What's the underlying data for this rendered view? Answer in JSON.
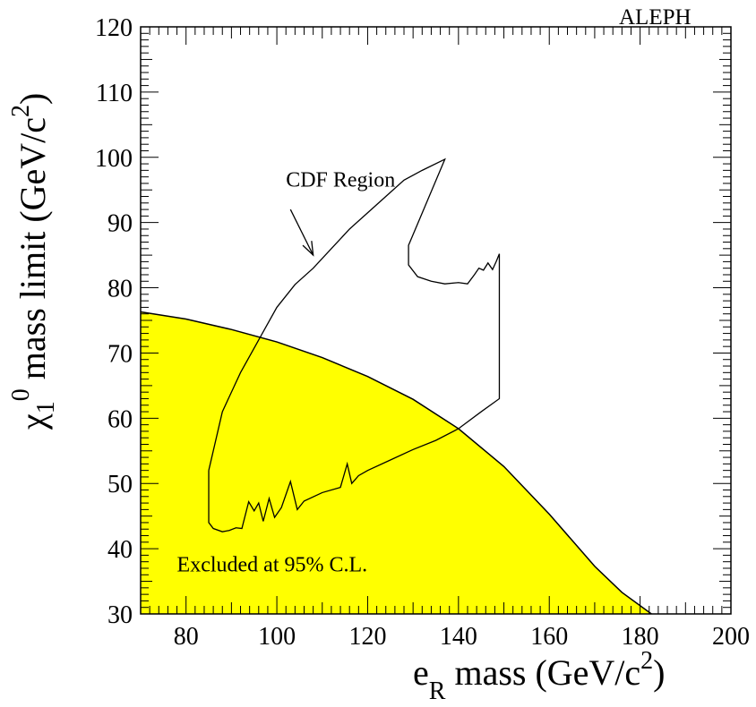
{
  "chart_data": {
    "type": "area",
    "experiment_label": "ALEPH",
    "xlabel": {
      "main": "e",
      "sub": "R",
      "rest": " mass  (GeV/c",
      "sup": "2",
      "end": ")"
    },
    "ylabel": {
      "main": "χ",
      "sub": "1",
      "sup": "0",
      "rest": " mass limit (GeV/c",
      "sup2": "2",
      "end": ")"
    },
    "xlim": [
      70,
      200
    ],
    "ylim": [
      30,
      120
    ],
    "x_ticks": [
      80,
      100,
      120,
      140,
      160,
      180,
      200
    ],
    "y_ticks": [
      30,
      40,
      50,
      60,
      70,
      80,
      90,
      100,
      110,
      120
    ],
    "grid": false,
    "colors": {
      "excluded_fill": "#ffff00",
      "line": "#000000"
    },
    "series": [
      {
        "name": "Excluded at 95% C.L.",
        "kind": "filled-area",
        "points": [
          [
            70,
            76.3
          ],
          [
            80,
            75.2
          ],
          [
            90,
            73.6
          ],
          [
            100,
            71.7
          ],
          [
            110,
            69.3
          ],
          [
            120,
            66.4
          ],
          [
            130,
            62.9
          ],
          [
            140,
            58.4
          ],
          [
            150,
            52.6
          ],
          [
            160,
            45.3
          ],
          [
            170,
            37.3
          ],
          [
            176,
            33.3
          ],
          [
            182.5,
            30
          ]
        ]
      },
      {
        "name": "CDF Region",
        "kind": "contour",
        "points": [
          [
            85,
            52
          ],
          [
            88,
            61
          ],
          [
            92,
            67
          ],
          [
            96,
            72
          ],
          [
            100,
            77
          ],
          [
            104,
            80.5
          ],
          [
            108,
            83
          ],
          [
            112,
            86
          ],
          [
            116,
            89
          ],
          [
            120,
            91.5
          ],
          [
            124,
            94
          ],
          [
            128,
            96.5
          ],
          [
            132,
            98
          ],
          [
            137,
            99.7
          ],
          [
            129,
            86.5
          ],
          [
            129,
            83.5
          ],
          [
            131,
            81.7
          ],
          [
            134,
            81
          ],
          [
            137,
            80.6
          ],
          [
            140,
            80.8
          ],
          [
            142,
            80.6
          ],
          [
            143.5,
            82
          ],
          [
            144.5,
            83
          ],
          [
            145.5,
            82.7
          ],
          [
            146.5,
            83.8
          ],
          [
            147.5,
            82.8
          ],
          [
            148.3,
            84
          ],
          [
            149,
            85.2
          ],
          [
            149,
            63
          ],
          [
            145,
            61
          ],
          [
            140,
            58.4
          ],
          [
            135,
            56.6
          ],
          [
            130,
            55.2
          ],
          [
            125,
            53.6
          ],
          [
            120,
            52
          ],
          [
            118,
            51.2
          ],
          [
            116.5,
            50
          ],
          [
            115.5,
            53
          ],
          [
            114,
            49.4
          ],
          [
            110,
            48.6
          ],
          [
            106,
            47.3
          ],
          [
            104.5,
            46
          ],
          [
            103,
            50.3
          ],
          [
            101,
            46.3
          ],
          [
            99.5,
            44.8
          ],
          [
            98.3,
            47.7
          ],
          [
            97,
            44.2
          ],
          [
            96,
            47
          ],
          [
            95,
            45.8
          ],
          [
            93.8,
            47.2
          ],
          [
            92.3,
            43.1
          ],
          [
            91,
            43.2
          ],
          [
            89.5,
            42.8
          ],
          [
            88,
            42.6
          ],
          [
            86,
            43.1
          ],
          [
            85,
            44
          ],
          [
            85,
            52
          ]
        ]
      }
    ],
    "annotations": [
      {
        "text": "CDF Region",
        "x": 102,
        "y": 95.5
      },
      {
        "text": "Excluded at 95% C.L.",
        "x": 78,
        "y": 36.5
      }
    ],
    "arrow": {
      "from": [
        103,
        92
      ],
      "to": [
        108,
        85
      ]
    }
  }
}
